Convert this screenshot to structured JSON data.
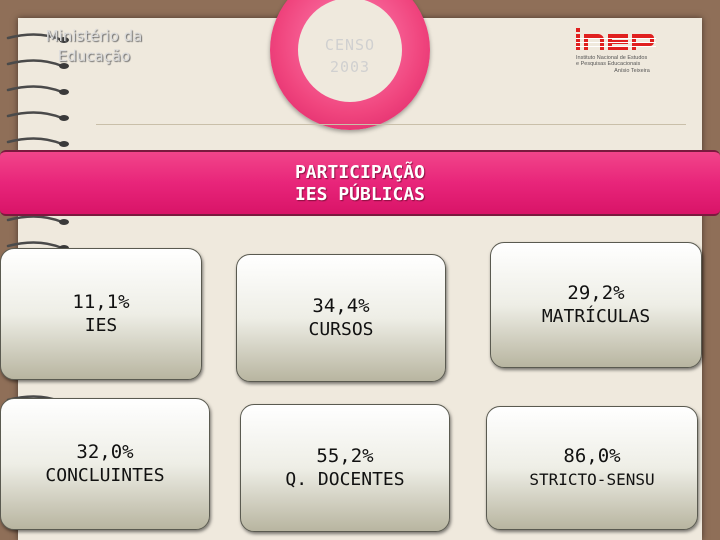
{
  "header": {
    "ministry_line1": "Ministério da",
    "ministry_line2": "Educação",
    "censo_line1": "CENSO",
    "censo_line2": "2003",
    "logo_text": "inep",
    "logo_sub1": "Instituto Nacional de Estudos",
    "logo_sub2": "e Pesquisas Educacionais",
    "logo_sub3": "Anísio Teixeira"
  },
  "banner": {
    "line1": "PARTICIPAÇÃO",
    "line2": "IES PÚBLICAS"
  },
  "cards": [
    {
      "value": "11,1%",
      "label": "IES"
    },
    {
      "value": "34,4%",
      "label": "CURSOS"
    },
    {
      "value": "29,2%",
      "label": "MATRÍCULAS"
    },
    {
      "value": "32,0%",
      "label": "CONCLUINTES"
    },
    {
      "value": "55,2%",
      "label": "Q. DOCENTES"
    },
    {
      "value": "86,0%",
      "label": "STRICTO-SENSU"
    }
  ],
  "colors": {
    "background": "#8f6f58",
    "paper": "#efe9dd",
    "banner": "#e8257a",
    "logo_red": "#e0201f"
  }
}
